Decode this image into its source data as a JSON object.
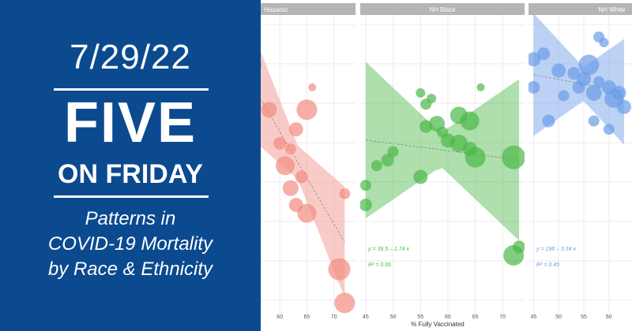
{
  "banner": {
    "date": "7/29/22",
    "five": "FIVE",
    "on_friday": "ON FRIDAY",
    "subtitle_lines": [
      "Patterns in",
      "COVID-19 Mortality",
      "by Race & Ethnicity"
    ],
    "bg_color": "#0b4a8f"
  },
  "chart_data": {
    "type": "scatter",
    "xlabel": "% Fully Vaccinated",
    "ylabel": "",
    "grid": true,
    "panels": [
      {
        "name": "Hispanic",
        "color": "#f28b82",
        "xlim": [
          55,
          74
        ],
        "ticks": [
          60,
          65,
          70
        ],
        "points": [
          {
            "x": 54.5,
            "y": 78,
            "s": 6
          },
          {
            "x": 55,
            "y": 88,
            "s": 11
          },
          {
            "x": 58,
            "y": 72,
            "s": 10
          },
          {
            "x": 60,
            "y": 60,
            "s": 8
          },
          {
            "x": 63,
            "y": 65,
            "s": 9
          },
          {
            "x": 65,
            "y": 72,
            "s": 13
          },
          {
            "x": 66,
            "y": 80,
            "s": 5
          },
          {
            "x": 62,
            "y": 58,
            "s": 7
          },
          {
            "x": 61,
            "y": 52,
            "s": 12
          },
          {
            "x": 64,
            "y": 48,
            "s": 8
          },
          {
            "x": 62,
            "y": 44,
            "s": 10
          },
          {
            "x": 63,
            "y": 38,
            "s": 9
          },
          {
            "x": 65,
            "y": 35,
            "s": 12
          },
          {
            "x": 72,
            "y": 42,
            "s": 7
          },
          {
            "x": 71,
            "y": 15,
            "s": 14
          },
          {
            "x": 72,
            "y": 3,
            "s": 13
          }
        ]
      },
      {
        "name": "NH Black",
        "color": "#4cb848",
        "xlim": [
          44,
          74
        ],
        "ticks": [
          45,
          50,
          55,
          60,
          65,
          70
        ],
        "equation": "y = 39.5 – 1.74 x",
        "r2": "R² = 0.06",
        "points": [
          {
            "x": 55,
            "y": 78,
            "s": 6
          },
          {
            "x": 56,
            "y": 74,
            "s": 7
          },
          {
            "x": 57,
            "y": 76,
            "s": 6
          },
          {
            "x": 66,
            "y": 80,
            "s": 5
          },
          {
            "x": 56,
            "y": 66,
            "s": 8
          },
          {
            "x": 58,
            "y": 67,
            "s": 10
          },
          {
            "x": 59,
            "y": 64,
            "s": 7
          },
          {
            "x": 62,
            "y": 70,
            "s": 11
          },
          {
            "x": 64,
            "y": 68,
            "s": 12
          },
          {
            "x": 60,
            "y": 61,
            "s": 9
          },
          {
            "x": 62,
            "y": 60,
            "s": 11
          },
          {
            "x": 64,
            "y": 58,
            "s": 9
          },
          {
            "x": 65,
            "y": 55,
            "s": 13
          },
          {
            "x": 72,
            "y": 55,
            "s": 15
          },
          {
            "x": 50,
            "y": 57,
            "s": 7
          },
          {
            "x": 49,
            "y": 54,
            "s": 8
          },
          {
            "x": 47,
            "y": 52,
            "s": 7
          },
          {
            "x": 55,
            "y": 48,
            "s": 9
          },
          {
            "x": 45,
            "y": 45,
            "s": 7
          },
          {
            "x": 45,
            "y": 38,
            "s": 8
          },
          {
            "x": 73,
            "y": 23,
            "s": 8
          },
          {
            "x": 72,
            "y": 20,
            "s": 13
          }
        ]
      },
      {
        "name": "NH White",
        "color": "#6b9be8",
        "xlim": [
          44,
          66
        ],
        "ticks": [
          45,
          50,
          55,
          60
        ],
        "equation": "y = 198 – 3.34 x",
        "r2": "R² = 0.45",
        "points": [
          {
            "x": 58,
            "y": 98,
            "s": 7
          },
          {
            "x": 59,
            "y": 96,
            "s": 6
          },
          {
            "x": 47,
            "y": 92,
            "s": 8
          },
          {
            "x": 45,
            "y": 90,
            "s": 9
          },
          {
            "x": 50,
            "y": 86,
            "s": 9
          },
          {
            "x": 56,
            "y": 88,
            "s": 13
          },
          {
            "x": 53,
            "y": 85,
            "s": 8
          },
          {
            "x": 54,
            "y": 80,
            "s": 8
          },
          {
            "x": 55,
            "y": 83,
            "s": 9
          },
          {
            "x": 57,
            "y": 78,
            "s": 10
          },
          {
            "x": 58,
            "y": 82,
            "s": 7
          },
          {
            "x": 60,
            "y": 80,
            "s": 9
          },
          {
            "x": 61,
            "y": 76,
            "s": 12
          },
          {
            "x": 62,
            "y": 78,
            "s": 9
          },
          {
            "x": 45,
            "y": 80,
            "s": 8
          },
          {
            "x": 51,
            "y": 77,
            "s": 7
          },
          {
            "x": 48,
            "y": 68,
            "s": 8
          },
          {
            "x": 57,
            "y": 68,
            "s": 7
          },
          {
            "x": 63,
            "y": 73,
            "s": 9
          },
          {
            "x": 60,
            "y": 65,
            "s": 7
          }
        ]
      }
    ],
    "ylim": [
      0,
      105
    ]
  }
}
